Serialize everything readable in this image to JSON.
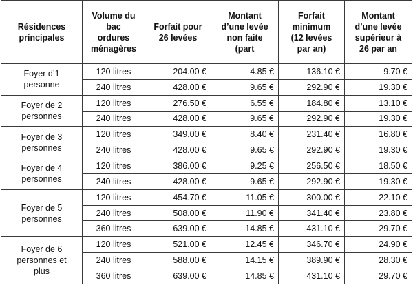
{
  "headers": [
    "Résidences\nprincipales",
    "Volume du\nbac\nordures\nménagères",
    "Forfait pour\n26 levées",
    "Montant\nd’une levée\nnon faite\n(part",
    "Forfait\nminimum\n(12 levées\npar an)",
    "Montant\nd’une levée\nsupérieur à\n26 par an"
  ],
  "groups": [
    {
      "label": "Foyer d’1\npersonne",
      "rows": [
        [
          "120 litres",
          "204.00 €",
          "4.85 €",
          "136.10 €",
          "9.70 €"
        ],
        [
          "240 litres",
          "428.00 €",
          "9.65 €",
          "292.90 €",
          "19.30 €"
        ]
      ]
    },
    {
      "label": "Foyer de 2\npersonnes",
      "rows": [
        [
          "120 litres",
          "276.50 €",
          "6.55 €",
          "184.80 €",
          "13.10 €"
        ],
        [
          "240 litres",
          "428.00 €",
          "9.65 €",
          "292.90 €",
          "19.30 €"
        ]
      ]
    },
    {
      "label": "Foyer de 3\npersonnes",
      "rows": [
        [
          "120 litres",
          "349.00 €",
          "8.40 €",
          "231.40 €",
          "16.80 €"
        ],
        [
          "240 litres",
          "428.00 €",
          "9.65 €",
          "292.90 €",
          "19.30 €"
        ]
      ]
    },
    {
      "label": "Foyer de 4\npersonnes",
      "rows": [
        [
          "120 litres",
          "386.00 €",
          "9.25 €",
          "256.50 €",
          "18.50 €"
        ],
        [
          "240 litres",
          "428.00 €",
          "9.65 €",
          "292.90 €",
          "19.30 €"
        ]
      ]
    },
    {
      "label": "Foyer de 5\npersonnes",
      "rows": [
        [
          "120 litres",
          "454.70 €",
          "11.05 €",
          "300.00 €",
          "22.10 €"
        ],
        [
          "240 litres",
          "508.00 €",
          "11.90 €",
          "341.40 €",
          "23.80 €"
        ],
        [
          "360 litres",
          "639.00 €",
          "14.85 €",
          "431.10 €",
          "29.70 €"
        ]
      ]
    },
    {
      "label": "Foyer de 6\npersonnes et\nplus",
      "rows": [
        [
          "120 litres",
          "521.00 €",
          "12.45 €",
          "346.70 €",
          "24.90 €"
        ],
        [
          "240 litres",
          "588.00 €",
          "14.15 €",
          "389.90 €",
          "28.30 €"
        ],
        [
          "360 litres",
          "639.00 €",
          "14.85 €",
          "431.10 €",
          "29.70 €"
        ]
      ]
    }
  ]
}
